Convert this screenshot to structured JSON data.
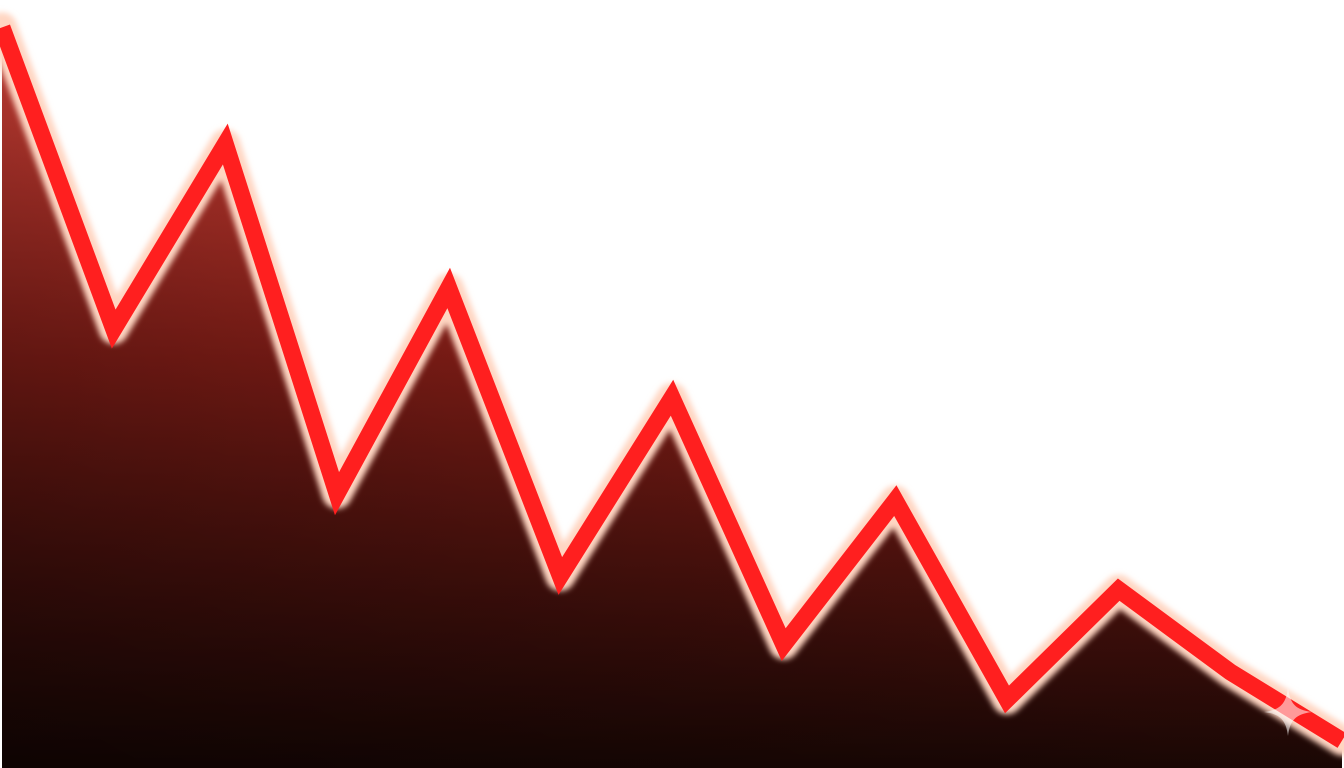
{
  "chart_data": {
    "type": "area",
    "title": "",
    "xlabel": "",
    "ylabel": "",
    "x": [
      0,
      1,
      2,
      3,
      4,
      5,
      6,
      7,
      8,
      9,
      10,
      11,
      12
    ],
    "series": [
      {
        "values": [
          100,
          56,
          83,
          32,
          62,
          20,
          46,
          10,
          31,
          2,
          18,
          6,
          -4
        ]
      }
    ],
    "xlim": [
      0,
      12
    ],
    "ylim": [
      -8,
      104
    ],
    "grid": false,
    "legend": "none",
    "line_color": "#ff1f1f",
    "line_glow_color": "#ffd6c2",
    "fill_colors": [
      "#d8453b",
      "#7f1b16",
      "#1e0805"
    ],
    "background_color": "#ffffff",
    "trend": "declining"
  },
  "icons": {
    "watermark": "sparkle-icon"
  }
}
